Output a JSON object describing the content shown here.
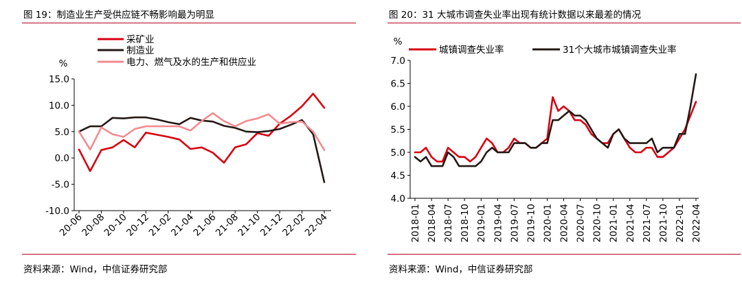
{
  "charts": [
    {
      "title": "图 19：制造业生产受供应链不畅影响最为明显",
      "source": "资料来源：Wind，中信证券研究部",
      "unit": "%"
    },
    {
      "title": "图 20：31 大城市调查失业率出现有统计数据以来最差的情况",
      "source": "资料来源：Wind，中信证券研究部",
      "unit": "%"
    }
  ],
  "chart_data": [
    {
      "type": "line",
      "title": "",
      "xlabel": "",
      "ylabel": "%",
      "ylim": [
        -10,
        15
      ],
      "yticks": [
        15,
        10,
        5,
        0,
        -5,
        -10
      ],
      "ytick_labels": [
        "15.0",
        "10.0",
        "5.0",
        "0.0",
        "-5.0",
        "-10.0"
      ],
      "x": [
        "20-06",
        "20-07",
        "20-08",
        "20-09",
        "20-10",
        "20-11",
        "20-12",
        "21-01",
        "21-02",
        "21-03",
        "21-04",
        "21-05",
        "21-06",
        "21-07",
        "21-08",
        "21-09",
        "21-10",
        "21-11",
        "21-12",
        "22-01",
        "22-02",
        "22-03",
        "22-04"
      ],
      "x_tick_labels": [
        "20-06",
        "20-08",
        "20-10",
        "20-12",
        "21-02",
        "21-04",
        "21-06",
        "21-08",
        "21-10",
        "21-12",
        "22-02",
        "22-04"
      ],
      "grid": false,
      "legend_position": "top-left",
      "series": [
        {
          "name": "采矿业",
          "color": "#d7000f",
          "values": [
            1.6,
            -2.5,
            1.5,
            2.0,
            3.4,
            2.0,
            4.8,
            4.4,
            4.0,
            3.5,
            1.7,
            2.0,
            1.0,
            -0.9,
            2.0,
            2.6,
            4.7,
            4.2,
            6.5,
            8.0,
            9.8,
            12.2,
            9.5
          ]
        },
        {
          "name": "制造业",
          "color": "#231815",
          "values": [
            5.0,
            6.0,
            6.0,
            7.6,
            7.5,
            7.7,
            7.7,
            7.3,
            6.8,
            6.4,
            7.6,
            7.1,
            6.9,
            6.1,
            5.7,
            5.0,
            4.9,
            5.1,
            5.5,
            6.3,
            7.2,
            4.5,
            -4.6
          ]
        },
        {
          "name": "电力、燃气及水的生产和供应业",
          "color": "#f28a8f",
          "values": [
            5.0,
            1.6,
            5.8,
            4.5,
            4.0,
            5.5,
            6.0,
            6.0,
            6.0,
            6.0,
            5.2,
            7.0,
            8.5,
            7.0,
            6.0,
            7.0,
            7.5,
            8.3,
            6.5,
            6.8,
            6.9,
            5.0,
            1.5
          ]
        }
      ]
    },
    {
      "type": "line",
      "title": "",
      "xlabel": "",
      "ylabel": "%",
      "ylim": [
        4.0,
        7.0
      ],
      "yticks": [
        7.0,
        6.5,
        6.0,
        5.5,
        5.0,
        4.5,
        4.0
      ],
      "ytick_labels": [
        "7.0",
        "6.5",
        "6.0",
        "5.5",
        "5.0",
        "4.5",
        "4.0"
      ],
      "x": [
        "2018-01",
        "2018-02",
        "2018-03",
        "2018-04",
        "2018-05",
        "2018-06",
        "2018-07",
        "2018-08",
        "2018-09",
        "2018-10",
        "2018-11",
        "2018-12",
        "2019-01",
        "2019-02",
        "2019-03",
        "2019-04",
        "2019-05",
        "2019-06",
        "2019-07",
        "2019-08",
        "2019-09",
        "2019-10",
        "2019-11",
        "2019-12",
        "2020-01",
        "2020-02",
        "2020-03",
        "2020-04",
        "2020-05",
        "2020-06",
        "2020-07",
        "2020-08",
        "2020-09",
        "2020-10",
        "2020-11",
        "2020-12",
        "2021-01",
        "2021-02",
        "2021-03",
        "2021-04",
        "2021-05",
        "2021-06",
        "2021-07",
        "2021-08",
        "2021-09",
        "2021-10",
        "2021-11",
        "2021-12",
        "2022-01",
        "2022-02",
        "2022-03",
        "2022-04"
      ],
      "x_tick_labels": [
        "2018-01",
        "2018-04",
        "2018-07",
        "2018-10",
        "2019-01",
        "2019-04",
        "2019-07",
        "2019-10",
        "2020-01",
        "2020-04",
        "2020-07",
        "2020-10",
        "2021-01",
        "2021-04",
        "2021-07",
        "2021-10",
        "2022-01",
        "2022-04"
      ],
      "grid": false,
      "legend_position": "top",
      "series": [
        {
          "name": "城镇调查失业率",
          "color": "#d7000f",
          "values": [
            5.0,
            5.0,
            5.1,
            4.9,
            4.8,
            4.8,
            5.1,
            5.0,
            4.9,
            4.9,
            4.8,
            4.9,
            5.1,
            5.3,
            5.2,
            5.0,
            5.0,
            5.1,
            5.3,
            5.2,
            5.2,
            5.1,
            5.1,
            5.2,
            5.3,
            6.2,
            5.9,
            6.0,
            5.9,
            5.7,
            5.7,
            5.6,
            5.4,
            5.3,
            5.2,
            5.2,
            5.4,
            5.5,
            5.3,
            5.1,
            5.0,
            5.0,
            5.1,
            5.1,
            4.9,
            4.9,
            5.0,
            5.1,
            5.3,
            5.5,
            5.8,
            6.1
          ]
        },
        {
          "name": "31个大城市城镇调查失业率",
          "color": "#231815",
          "values": [
            4.9,
            4.8,
            4.9,
            4.7,
            4.7,
            4.7,
            5.0,
            4.9,
            4.7,
            4.7,
            4.7,
            4.7,
            4.8,
            5.0,
            5.1,
            5.0,
            5.0,
            5.0,
            5.2,
            5.2,
            5.2,
            5.1,
            5.1,
            5.2,
            5.2,
            5.7,
            5.7,
            5.8,
            5.9,
            5.8,
            5.8,
            5.7,
            5.5,
            5.3,
            5.2,
            5.1,
            5.4,
            5.5,
            5.3,
            5.2,
            5.2,
            5.2,
            5.2,
            5.3,
            5.0,
            5.1,
            5.1,
            5.1,
            5.4,
            5.4,
            6.0,
            6.7
          ]
        }
      ]
    }
  ]
}
